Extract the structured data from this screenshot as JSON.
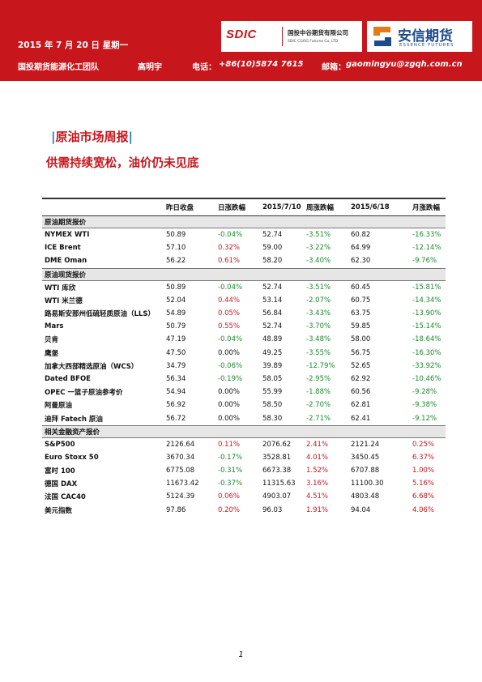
{
  "header": {
    "date": "2015 年 7 月 20 日  星期一",
    "team": "国投期货能源化工团队",
    "analyst": "高明宇",
    "phone_label": "电话：",
    "phone": "+86(10)5874 7615",
    "email_label": "邮箱：",
    "email": "gaomingyu@zgqh.com.cn"
  },
  "logos": {
    "sdic_mark": "SDIC",
    "sdic_cn": "国投中谷期货有限公司",
    "sdic_en": "SDIC CGOG Futures Co.,LTD",
    "essence_cn": "安信期货",
    "essence_en": "ESSENCE FUTURES"
  },
  "section_title": "原油市场周报",
  "subtitle": "供需持续宽松，油价仍未见底",
  "table": {
    "columns": [
      "",
      "昨日收盘",
      "日涨跌幅",
      "2015/7/10",
      "周涨跌幅",
      "2015/6/18",
      "月涨跌幅"
    ],
    "groups": [
      {
        "title": "原油期货报价",
        "rows": [
          [
            "NYMEX WTI",
            "50.89",
            "-0.04%",
            "52.74",
            "-3.51%",
            "60.82",
            "-16.33%"
          ],
          [
            "ICE Brent",
            "57.10",
            "0.32%",
            "59.00",
            "-3.22%",
            "64.99",
            "-12.14%"
          ],
          [
            "DME Oman",
            "56.22",
            "0.61%",
            "58.20",
            "-3.40%",
            "62.30",
            "-9.76%"
          ]
        ]
      },
      {
        "title": "原油现货报价",
        "rows": [
          [
            "WTI 库欣",
            "50.89",
            "-0.04%",
            "52.74",
            "-3.51%",
            "60.45",
            "-15.81%"
          ],
          [
            "WTI 米兰德",
            "52.04",
            "0.44%",
            "53.14",
            "-2.07%",
            "60.75",
            "-14.34%"
          ],
          [
            "路易斯安那州低硫轻质原油（LLS）",
            "54.89",
            "0.05%",
            "56.84",
            "-3.43%",
            "63.75",
            "-13.90%"
          ],
          [
            "Mars",
            "50.79",
            "0.55%",
            "52.74",
            "-3.70%",
            "59.85",
            "-15.14%"
          ],
          [
            "贝肯",
            "47.19",
            "-0.04%",
            "48.89",
            "-3.48%",
            "58.00",
            "-18.64%"
          ],
          [
            "鹰堡",
            "47.50",
            "0.00%",
            "49.25",
            "-3.55%",
            "56.75",
            "-16.30%"
          ],
          [
            "加拿大西部精选原油（WCS）",
            "34.79",
            "-0.06%",
            "39.89",
            "-12.79%",
            "52.65",
            "-33.92%"
          ],
          [
            "Dated BFOE",
            "56.34",
            "-0.19%",
            "58.05",
            "-2.95%",
            "62.92",
            "-10.46%"
          ],
          [
            "OPEC 一篮子原油参考价",
            "54.94",
            "0.00%",
            "55.99",
            "-1.88%",
            "60.56",
            "-9.28%"
          ],
          [
            "阿曼原油",
            "56.92",
            "0.00%",
            "58.50",
            "-2.70%",
            "62.81",
            "-9.38%"
          ],
          [
            "迪拜 Fatech 原油",
            "56.72",
            "0.00%",
            "58.30",
            "-2.71%",
            "62.41",
            "-9.12%"
          ]
        ]
      },
      {
        "title": "相关金融资产报价",
        "rows": [
          [
            "S&P500",
            "2126.64",
            "0.11%",
            "2076.62",
            "2.41%",
            "2121.24",
            "0.25%"
          ],
          [
            "Euro Stoxx 50",
            "3670.34",
            "-0.17%",
            "3528.81",
            "4.01%",
            "3450.45",
            "6.37%"
          ],
          [
            "富时 100",
            "6775.08",
            "-0.31%",
            "6673.38",
            "1.52%",
            "6707.88",
            "1.00%"
          ],
          [
            "德国 DAX",
            "11673.42",
            "-0.37%",
            "11315.63",
            "3.16%",
            "11100.30",
            "5.16%"
          ],
          [
            "法国 CAC40",
            "5124.39",
            "0.06%",
            "4903.07",
            "4.51%",
            "4803.48",
            "6.68%"
          ],
          [
            "美元指数",
            "97.86",
            "0.20%",
            "96.03",
            "1.91%",
            "94.04",
            "4.06%"
          ]
        ]
      }
    ]
  },
  "colors": {
    "brand_red": "#c8161d",
    "rise": "#c8161d",
    "fall": "#1a8a2a",
    "title_bar": "#1d7bc2"
  },
  "page_number": "1"
}
